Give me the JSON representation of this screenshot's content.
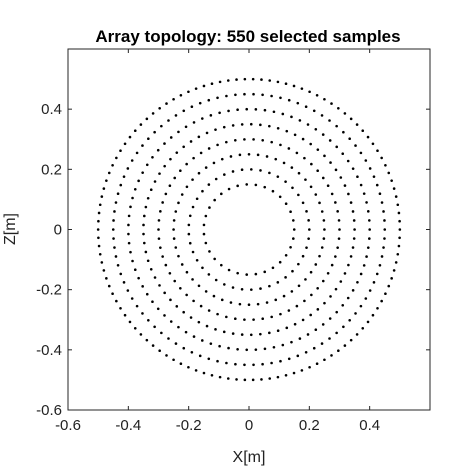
{
  "chart_data": {
    "type": "scatter",
    "title": "Array topology: 550 selected samples",
    "xlabel": "X[m]",
    "ylabel": "Z[m]",
    "xlim": [
      -0.6,
      0.6
    ],
    "ylim": [
      -0.6,
      0.6
    ],
    "x_ticks": [
      "-0.6",
      "-0.4",
      "-0.2",
      "0",
      "0.2",
      "0.4"
    ],
    "x_tick_values": [
      -0.6,
      -0.4,
      -0.2,
      0,
      0.2,
      0.4
    ],
    "y_ticks": [
      "-0.6",
      "-0.4",
      "-0.2",
      "0",
      "0.2",
      "0.4"
    ],
    "y_tick_values": [
      -0.6,
      -0.4,
      -0.2,
      0,
      0.2,
      0.4
    ],
    "grid": false,
    "legend": "none",
    "marker_color": "#000000",
    "sample_count": 550,
    "rings": [
      {
        "radius": 0.15,
        "points": 31
      },
      {
        "radius": 0.2,
        "points": 41
      },
      {
        "radius": 0.25,
        "points": 52
      },
      {
        "radius": 0.3,
        "points": 62
      },
      {
        "radius": 0.35,
        "points": 73
      },
      {
        "radius": 0.4,
        "points": 83
      },
      {
        "radius": 0.45,
        "points": 94
      },
      {
        "radius": 0.5,
        "points": 114
      }
    ]
  }
}
